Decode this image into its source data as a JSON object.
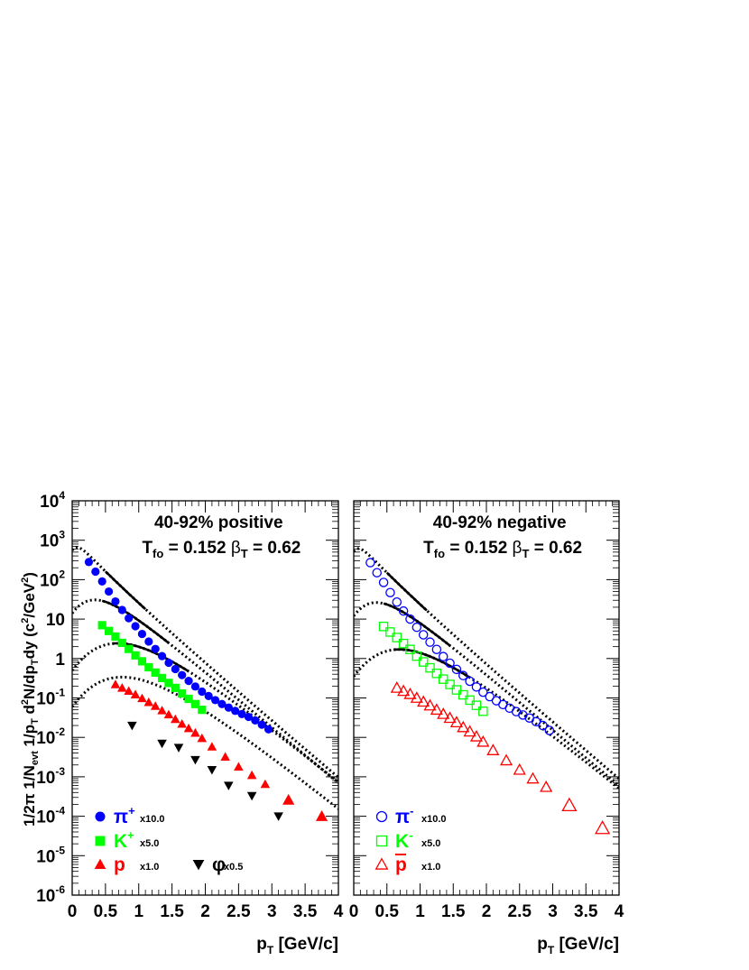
{
  "chart_data": {
    "type": "scatter",
    "ylabel": "1/2π 1/N",
    "ylabel_parts": {
      "a": "1/2π 1/N",
      "a_sub": "evt",
      "b": " 1/p",
      "b_sub": "T",
      "c": " d",
      "c_sup": "2",
      "d": "N/dp",
      "d_sub": "T",
      "e": "dy (c",
      "e_sup": "2",
      "f": "/GeV",
      "f_sup": "2",
      "g": ")"
    },
    "yscale": "log",
    "ylim": [
      1e-06,
      10000.0
    ],
    "y_ticks": [
      {
        "base": "10",
        "exp": "4"
      },
      {
        "base": "10",
        "exp": "3"
      },
      {
        "base": "10",
        "exp": "2"
      },
      {
        "base": "10",
        "exp": ""
      },
      {
        "base": "1",
        "exp": ""
      },
      {
        "base": "10",
        "exp": "-1"
      },
      {
        "base": "10",
        "exp": "-2"
      },
      {
        "base": "10",
        "exp": "-3"
      },
      {
        "base": "10",
        "exp": "-4"
      },
      {
        "base": "10",
        "exp": "-5"
      },
      {
        "base": "10",
        "exp": "-6"
      }
    ],
    "xlim": [
      0,
      4
    ],
    "x_ticks": [
      "0",
      "0.5",
      "1",
      "1.5",
      "2",
      "2.5",
      "3",
      "3.5",
      "4"
    ],
    "xlabel_main": "p",
    "xlabel_sub": "T",
    "xlabel_unit": " [GeV/c]",
    "panels": [
      {
        "title": "40-92%  positive",
        "param_t": "T",
        "param_t_sub": "fo",
        "param_t_val": " = 0.152",
        "param_b": "β",
        "param_b_sub": "T",
        "param_b_val": " = 0.62",
        "series": [
          {
            "name": "π",
            "sup": "+",
            "scale": "x10.0",
            "color": "#0000ff",
            "marker": "circle",
            "filled": true,
            "x": [
              0.25,
              0.35,
              0.45,
              0.55,
              0.65,
              0.75,
              0.85,
              0.95,
              1.05,
              1.15,
              1.25,
              1.35,
              1.45,
              1.55,
              1.65,
              1.75,
              1.85,
              1.95,
              2.05,
              2.15,
              2.25,
              2.35,
              2.45,
              2.55,
              2.65,
              2.75,
              2.85,
              2.95
            ],
            "y": [
              280,
              160,
              90,
              50,
              28,
              17,
              10.5,
              6.6,
              4.2,
              2.7,
              1.75,
              1.15,
              0.78,
              0.54,
              0.38,
              0.27,
              0.195,
              0.145,
              0.112,
              0.088,
              0.07,
              0.057,
              0.047,
              0.039,
              0.033,
              0.027,
              0.021,
              0.016
            ]
          },
          {
            "name": "K",
            "sup": "+",
            "scale": "x5.0",
            "color": "#00ff00",
            "marker": "square",
            "filled": true,
            "x": [
              0.45,
              0.55,
              0.65,
              0.75,
              0.85,
              0.95,
              1.05,
              1.15,
              1.25,
              1.35,
              1.45,
              1.55,
              1.65,
              1.75,
              1.85,
              1.95
            ],
            "y": [
              7,
              5,
              3.6,
              2.5,
              1.75,
              1.2,
              0.85,
              0.6,
              0.44,
              0.32,
              0.24,
              0.18,
              0.13,
              0.095,
              0.07,
              0.05
            ]
          },
          {
            "name": "p",
            "sup": "",
            "scale": "x1.0",
            "color": "#ff0000",
            "marker": "triangle-up",
            "filled": true,
            "x": [
              0.65,
              0.75,
              0.85,
              0.95,
              1.05,
              1.15,
              1.25,
              1.35,
              1.45,
              1.55,
              1.65,
              1.75,
              1.85,
              1.95,
              2.1,
              2.3,
              2.5,
              2.7,
              2.9,
              3.25,
              3.75
            ],
            "y": [
              0.22,
              0.18,
              0.15,
              0.122,
              0.098,
              0.078,
              0.062,
              0.048,
              0.038,
              0.029,
              0.022,
              0.017,
              0.013,
              0.0095,
              0.0058,
              0.0032,
              0.0018,
              0.0011,
              0.00065,
              0.00026,
              0.0001
            ]
          },
          {
            "name": "φ",
            "sup": "",
            "scale": "x0.5",
            "color": "#000000",
            "marker": "triangle-down",
            "filled": true,
            "x": [
              0.9,
              1.35,
              1.6,
              1.85,
              2.1,
              2.35,
              2.7,
              3.1
            ],
            "y": [
              0.02,
              0.007,
              0.0055,
              0.0027,
              0.0015,
              0.0006,
              0.00033,
              0.0001
            ]
          }
        ],
        "fits": [
          {
            "scale": 10.0,
            "mass": 0.1396,
            "norm_y0": 560,
            "fit_range": [
              0.5,
              1.1
            ]
          },
          {
            "scale": 5.0,
            "mass": 0.4937,
            "norm_y0": 14,
            "fit_range": [
              0.45,
              1.45
            ]
          },
          {
            "scale": 1.0,
            "mass": 0.9383,
            "norm_y0": 0.5,
            "fit_range": [
              0.6,
              1.75
            ]
          },
          {
            "scale": 0.5,
            "mass": 1.0195,
            "norm_y0": 0.06,
            "fit_range": null
          }
        ]
      },
      {
        "title": "40-92%  negative",
        "param_t": "T",
        "param_t_sub": "fo",
        "param_t_val": " = 0.152",
        "param_b": "β",
        "param_b_sub": "T",
        "param_b_val": " = 0.62",
        "series": [
          {
            "name": "π",
            "sup": "-",
            "scale": "x10.0",
            "color": "#0000ff",
            "marker": "circle",
            "filled": false,
            "x": [
              0.25,
              0.35,
              0.45,
              0.55,
              0.65,
              0.75,
              0.85,
              0.95,
              1.05,
              1.15,
              1.25,
              1.35,
              1.45,
              1.55,
              1.65,
              1.75,
              1.85,
              1.95,
              2.05,
              2.15,
              2.25,
              2.35,
              2.45,
              2.55,
              2.65,
              2.75,
              2.85,
              2.95
            ],
            "y": [
              270,
              150,
              85,
              47,
              27,
              16,
              10,
              6.2,
              4,
              2.6,
              1.7,
              1.12,
              0.76,
              0.53,
              0.37,
              0.265,
              0.19,
              0.14,
              0.108,
              0.085,
              0.068,
              0.055,
              0.045,
              0.037,
              0.031,
              0.025,
              0.02,
              0.015
            ]
          },
          {
            "name": "K",
            "sup": "-",
            "scale": "x5.0",
            "color": "#00ff00",
            "marker": "square",
            "filled": false,
            "x": [
              0.45,
              0.55,
              0.65,
              0.75,
              0.85,
              0.95,
              1.05,
              1.15,
              1.25,
              1.35,
              1.45,
              1.55,
              1.65,
              1.75,
              1.85,
              1.95
            ],
            "y": [
              6.5,
              4.7,
              3.4,
              2.4,
              1.7,
              1.15,
              0.82,
              0.58,
              0.42,
              0.3,
              0.22,
              0.16,
              0.12,
              0.088,
              0.065,
              0.046
            ]
          },
          {
            "name": "p",
            "sup": "",
            "overline": true,
            "scale": "x1.0",
            "color": "#ff0000",
            "marker": "triangle-up",
            "filled": false,
            "x": [
              0.65,
              0.75,
              0.85,
              0.95,
              1.05,
              1.15,
              1.25,
              1.35,
              1.45,
              1.55,
              1.65,
              1.75,
              1.85,
              1.95,
              2.1,
              2.3,
              2.5,
              2.7,
              2.9,
              3.25,
              3.75
            ],
            "y": [
              0.18,
              0.15,
              0.125,
              0.1,
              0.08,
              0.064,
              0.05,
              0.039,
              0.031,
              0.024,
              0.018,
              0.014,
              0.0105,
              0.0077,
              0.0047,
              0.0026,
              0.0015,
              0.0009,
              0.00055,
              0.00019,
              5e-05
            ]
          }
        ],
        "fits": [
          {
            "scale": 10.0,
            "mass": 0.1396,
            "norm_y0": 520,
            "fit_range": [
              0.5,
              1.1
            ]
          },
          {
            "scale": 5.0,
            "mass": 0.4937,
            "norm_y0": 12,
            "fit_range": [
              0.45,
              1.45
            ]
          },
          {
            "scale": 1.0,
            "mass": 0.9383,
            "norm_y0": 0.35,
            "fit_range": [
              0.6,
              1.75
            ]
          }
        ]
      }
    ]
  }
}
